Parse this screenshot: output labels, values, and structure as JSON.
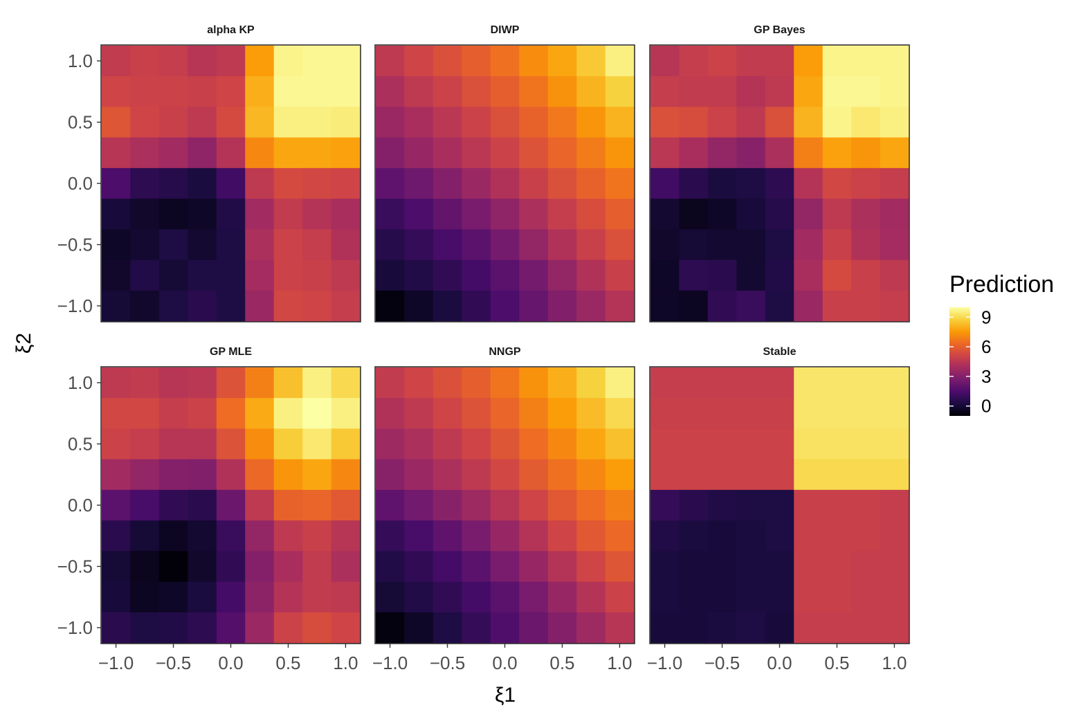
{
  "chart_data": {
    "type": "heatmap",
    "xlabel": "ξ1",
    "ylabel": "ξ2",
    "x": [
      -1.0,
      -0.75,
      -0.5,
      -0.25,
      0.0,
      0.25,
      0.5,
      0.75,
      1.0
    ],
    "y": [
      -1.0,
      -0.75,
      -0.5,
      -0.25,
      0.0,
      0.25,
      0.5,
      0.75,
      1.0
    ],
    "x_ticks": [
      "−1.0",
      "−0.5",
      "0.0",
      "0.5",
      "1.0"
    ],
    "y_ticks": [
      "−1.0",
      "−0.5",
      "0.0",
      "0.5",
      "1.0"
    ],
    "xlim": [
      -1.13,
      1.13
    ],
    "ylim": [
      -1.13,
      1.13
    ],
    "grid": true,
    "legend": {
      "title": "Prediction",
      "ticks": [
        "0",
        "3",
        "6",
        "9"
      ],
      "range": [
        -1,
        10
      ],
      "placement": "right"
    },
    "colormap": [
      "#000004",
      "#1b0c41",
      "#4a0c6b",
      "#781c6d",
      "#a52c60",
      "#cf4446",
      "#ed6925",
      "#fb9b06",
      "#f7d13d",
      "#fcffa4"
    ],
    "panels": [
      {
        "title": "alpha KP",
        "z": [
          [
            4.7,
            4.9,
            4.8,
            4.4,
            4.6,
            7.6,
            9.7,
            9.8,
            9.8
          ],
          [
            5.1,
            5.0,
            5.0,
            4.9,
            5.1,
            8.0,
            9.8,
            9.8,
            9.8
          ],
          [
            5.7,
            5.1,
            4.9,
            4.6,
            5.3,
            8.2,
            9.6,
            9.6,
            9.5
          ],
          [
            4.4,
            4.1,
            3.8,
            3.3,
            4.3,
            7.1,
            7.8,
            7.8,
            7.7
          ],
          [
            1.5,
            0.7,
            0.5,
            0.2,
            1.2,
            4.6,
            5.3,
            5.2,
            5.1
          ],
          [
            0.1,
            -0.2,
            -0.4,
            -0.3,
            0.4,
            3.8,
            4.7,
            4.3,
            4.0
          ],
          [
            -0.3,
            -0.1,
            0.3,
            -0.1,
            0.3,
            4.1,
            5.0,
            4.8,
            4.2
          ],
          [
            -0.2,
            0.4,
            0.0,
            0.3,
            0.3,
            3.9,
            5.0,
            4.9,
            4.6
          ],
          [
            0.0,
            -0.2,
            0.3,
            0.6,
            0.3,
            3.6,
            5.2,
            5.1,
            4.8
          ]
        ]
      },
      {
        "title": "DIWP",
        "z": [
          [
            4.6,
            5.1,
            5.5,
            6.0,
            6.5,
            7.2,
            7.8,
            8.6,
            9.6
          ],
          [
            4.1,
            4.6,
            5.0,
            5.5,
            6.0,
            6.6,
            7.3,
            8.1,
            8.8
          ],
          [
            3.6,
            4.0,
            4.5,
            5.0,
            5.5,
            6.1,
            6.7,
            7.4,
            8.1
          ],
          [
            3.0,
            3.5,
            4.0,
            4.5,
            5.0,
            5.6,
            6.2,
            6.8,
            7.4
          ],
          [
            2.0,
            2.4,
            3.0,
            3.6,
            4.2,
            4.9,
            5.5,
            6.1,
            6.6
          ],
          [
            1.0,
            1.5,
            2.1,
            2.7,
            3.3,
            4.1,
            4.8,
            5.4,
            6.0
          ],
          [
            0.5,
            0.9,
            1.4,
            1.9,
            2.6,
            3.4,
            4.2,
            4.9,
            5.5
          ],
          [
            0.1,
            0.4,
            0.8,
            1.3,
            1.9,
            2.6,
            3.4,
            4.2,
            4.9
          ],
          [
            -0.8,
            -0.3,
            0.2,
            0.8,
            1.5,
            2.2,
            2.9,
            3.6,
            4.3
          ]
        ]
      },
      {
        "title": "GP Bayes",
        "z": [
          [
            4.4,
            4.8,
            5.0,
            4.7,
            4.7,
            7.6,
            9.7,
            9.7,
            9.7
          ],
          [
            4.8,
            4.7,
            4.7,
            4.3,
            4.6,
            7.8,
            9.8,
            9.8,
            9.7
          ],
          [
            5.5,
            5.4,
            5.0,
            4.6,
            5.5,
            8.1,
            9.7,
            9.4,
            9.6
          ],
          [
            4.5,
            4.0,
            3.4,
            3.1,
            4.1,
            6.9,
            7.7,
            7.4,
            7.8
          ],
          [
            1.2,
            0.6,
            0.2,
            0.3,
            0.7,
            4.3,
            5.2,
            5.0,
            4.8
          ],
          [
            -0.1,
            -0.5,
            -0.3,
            0.1,
            0.5,
            3.4,
            4.6,
            4.1,
            3.8
          ],
          [
            -0.2,
            0.0,
            -0.1,
            -0.1,
            0.3,
            3.8,
            4.9,
            4.2,
            3.9
          ],
          [
            -0.3,
            0.7,
            0.6,
            -0.1,
            0.4,
            4.0,
            5.3,
            4.9,
            4.6
          ],
          [
            -0.3,
            -0.4,
            0.8,
            1.0,
            0.3,
            3.6,
            4.9,
            4.9,
            4.8
          ]
        ]
      },
      {
        "title": "GP MLE",
        "z": [
          [
            4.6,
            4.7,
            4.4,
            4.5,
            5.6,
            6.9,
            8.4,
            9.6,
            9.0
          ],
          [
            5.2,
            5.2,
            4.8,
            5.0,
            6.4,
            7.9,
            9.6,
            10.3,
            9.6
          ],
          [
            5.0,
            4.8,
            4.4,
            4.4,
            5.6,
            7.2,
            8.7,
            9.4,
            8.6
          ],
          [
            3.8,
            3.4,
            3.0,
            2.9,
            4.2,
            6.3,
            7.4,
            7.8,
            7.1
          ],
          [
            1.9,
            1.4,
            0.8,
            0.6,
            2.3,
            4.6,
            6.1,
            6.2,
            5.8
          ],
          [
            0.6,
            0.0,
            -0.4,
            -0.1,
            1.0,
            3.4,
            4.6,
            4.9,
            4.4
          ],
          [
            0.0,
            -0.5,
            -0.9,
            -0.2,
            0.8,
            3.0,
            4.0,
            4.7,
            4.1
          ],
          [
            0.1,
            -0.4,
            -0.3,
            0.2,
            1.3,
            3.2,
            4.3,
            4.7,
            4.6
          ],
          [
            0.6,
            0.3,
            0.4,
            0.7,
            1.7,
            3.6,
            5.0,
            5.4,
            5.1
          ]
        ]
      },
      {
        "title": "NNGP",
        "z": [
          [
            4.7,
            5.1,
            5.5,
            6.0,
            6.6,
            7.3,
            8.0,
            8.8,
            9.6
          ],
          [
            4.2,
            4.6,
            5.1,
            5.6,
            6.2,
            6.9,
            7.6,
            8.3,
            9.0
          ],
          [
            3.7,
            4.1,
            4.6,
            5.1,
            5.7,
            6.4,
            7.1,
            7.8,
            8.4
          ],
          [
            3.1,
            3.6,
            4.1,
            4.6,
            5.2,
            5.9,
            6.5,
            7.1,
            7.6
          ],
          [
            2.0,
            2.5,
            3.1,
            3.7,
            4.4,
            5.1,
            5.8,
            6.4,
            6.9
          ],
          [
            0.9,
            1.4,
            2.0,
            2.7,
            3.5,
            4.3,
            5.1,
            5.8,
            6.3
          ],
          [
            0.4,
            0.8,
            1.3,
            1.9,
            2.7,
            3.5,
            4.3,
            5.1,
            5.7
          ],
          [
            0.0,
            0.4,
            0.8,
            1.3,
            1.9,
            2.7,
            3.5,
            4.3,
            5.0
          ],
          [
            -0.8,
            -0.3,
            0.3,
            0.9,
            1.6,
            2.3,
            3.0,
            3.7,
            4.4
          ]
        ]
      },
      {
        "title": "Stable",
        "z": [
          [
            4.8,
            4.8,
            4.8,
            4.8,
            4.8,
            9.3,
            9.3,
            9.3,
            9.3
          ],
          [
            4.9,
            4.9,
            4.9,
            4.9,
            4.9,
            9.3,
            9.3,
            9.3,
            9.3
          ],
          [
            5.0,
            5.0,
            5.0,
            5.0,
            5.0,
            9.2,
            9.2,
            9.2,
            9.2
          ],
          [
            5.0,
            5.0,
            5.0,
            5.0,
            5.0,
            9.0,
            9.0,
            9.0,
            9.0
          ],
          [
            0.9,
            0.6,
            0.4,
            0.3,
            0.3,
            4.9,
            4.9,
            4.9,
            4.8
          ],
          [
            0.4,
            0.2,
            0.1,
            0.2,
            0.3,
            4.9,
            4.9,
            4.9,
            4.8
          ],
          [
            0.2,
            0.1,
            0.1,
            0.2,
            0.2,
            4.9,
            4.9,
            4.8,
            4.8
          ],
          [
            0.2,
            0.1,
            0.1,
            0.2,
            0.2,
            4.9,
            4.9,
            4.8,
            4.8
          ],
          [
            0.1,
            0.1,
            0.2,
            0.3,
            0.1,
            4.8,
            4.8,
            4.8,
            4.8
          ]
        ]
      }
    ]
  }
}
